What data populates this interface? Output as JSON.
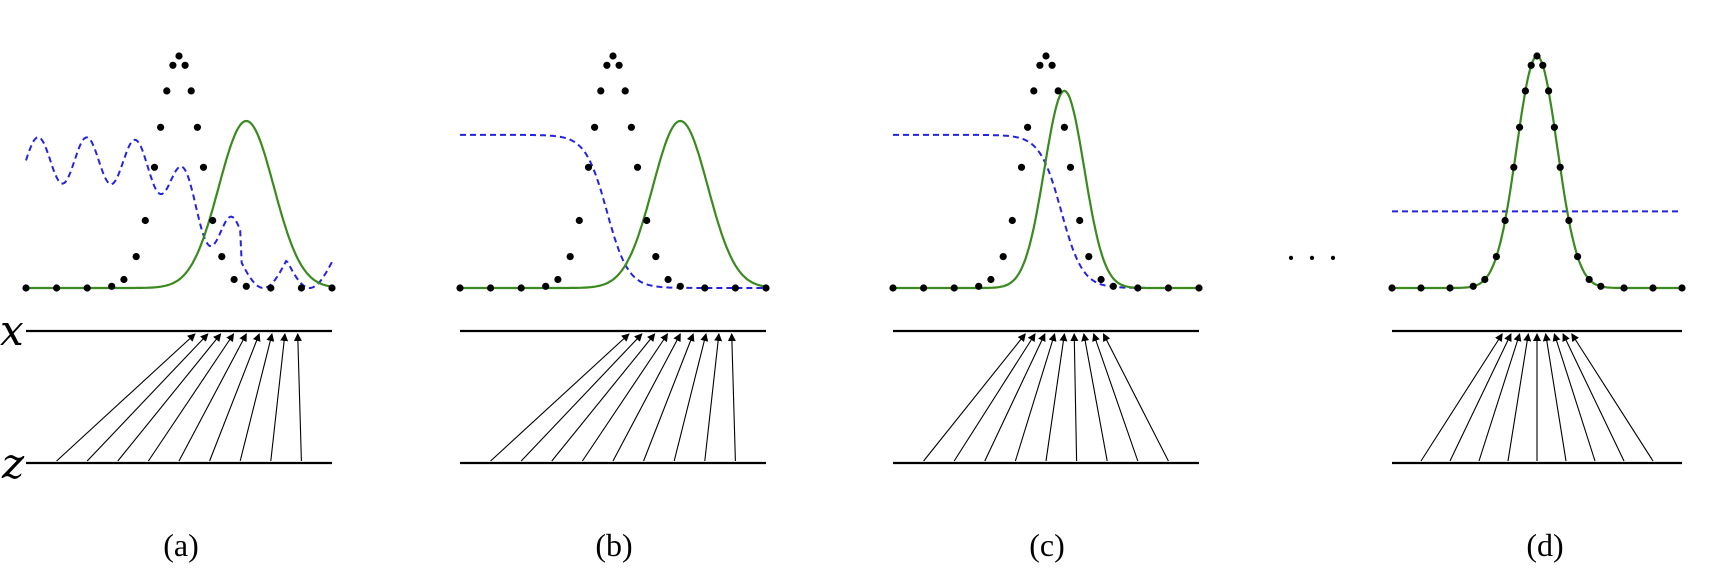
{
  "figure": {
    "axis_labels": {
      "x": "x",
      "z": "z"
    },
    "ellipsis": "· · ·",
    "colors": {
      "real": "#000000",
      "generator": "#3a8a1f",
      "discriminator": "#2424e0",
      "axis": "#000000"
    },
    "panels": [
      {
        "id": "a",
        "caption": "(a)",
        "generator": {
          "mean": 0.72,
          "sd": 0.09,
          "height": 0.72
        },
        "discriminator": {
          "kind": "wavy",
          "level": 0.55
        },
        "mapping": {
          "target_center": 0.72,
          "compression": 0.42
        }
      },
      {
        "id": "b",
        "caption": "(b)",
        "generator": {
          "mean": 0.72,
          "sd": 0.09,
          "height": 0.72
        },
        "discriminator": {
          "kind": "sigmoid",
          "level": 0.66,
          "center": 0.48
        },
        "mapping": {
          "target_center": 0.72,
          "compression": 0.42
        }
      },
      {
        "id": "c",
        "caption": "(c)",
        "generator": {
          "mean": 0.56,
          "sd": 0.065,
          "height": 0.85
        },
        "discriminator": {
          "kind": "sigmoid",
          "level": 0.66,
          "center": 0.55
        },
        "mapping": {
          "target_center": 0.56,
          "compression": 0.32
        }
      },
      {
        "id": "d",
        "caption": "(d)",
        "generator": {
          "mean": 0.5,
          "sd": 0.07,
          "height": 1.0
        },
        "discriminator": {
          "kind": "flat",
          "level": 0.33
        },
        "mapping": {
          "target_center": 0.5,
          "compression": 0.3
        }
      }
    ],
    "real_distribution": {
      "mean": 0.5,
      "sd": 0.07,
      "height": 1.0
    }
  }
}
